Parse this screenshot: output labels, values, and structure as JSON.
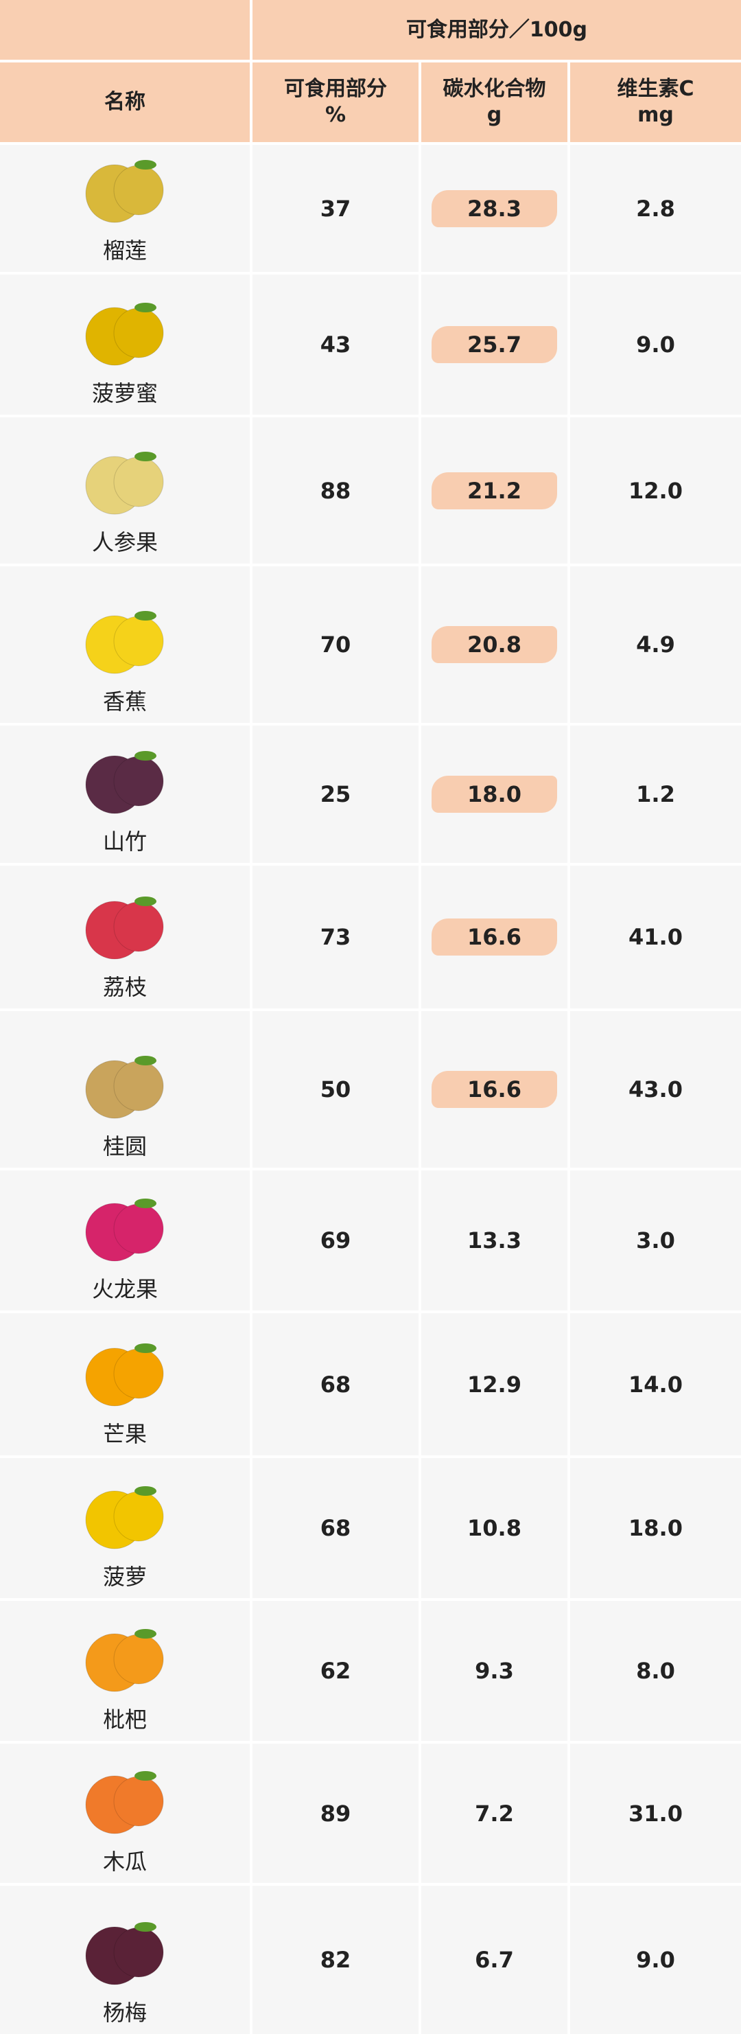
{
  "table": {
    "group_header": "可食用部分／100g",
    "columns": [
      "名称",
      "可食用部分\n%",
      "碳水化合物\ng",
      "维生素C\nmg"
    ],
    "rows": [
      [
        "榴莲",
        "37",
        "28.3",
        "2.8"
      ],
      [
        "菠萝蜜",
        "43",
        "25.7",
        "9.0"
      ],
      [
        "人参果",
        "88",
        "21.2",
        "12.0"
      ],
      [
        "香蕉",
        "70",
        "20.8",
        "4.9"
      ],
      [
        "山竹",
        "25",
        "18.0",
        "1.2"
      ],
      [
        "荔枝",
        "73",
        "16.6",
        "41.0"
      ],
      [
        "桂圆",
        "50",
        "16.6",
        "43.0"
      ],
      [
        "火龙果",
        "69",
        "13.3",
        "3.0"
      ],
      [
        "芒果",
        "68",
        "12.9",
        "14.0"
      ],
      [
        "菠萝",
        "68",
        "10.8",
        "18.0"
      ],
      [
        "枇杷",
        "62",
        "9.3",
        "8.0"
      ],
      [
        "木瓜",
        "89",
        "7.2",
        "31.0"
      ],
      [
        "杨梅",
        "82",
        "6.7",
        "9.0"
      ]
    ]
  }
}
